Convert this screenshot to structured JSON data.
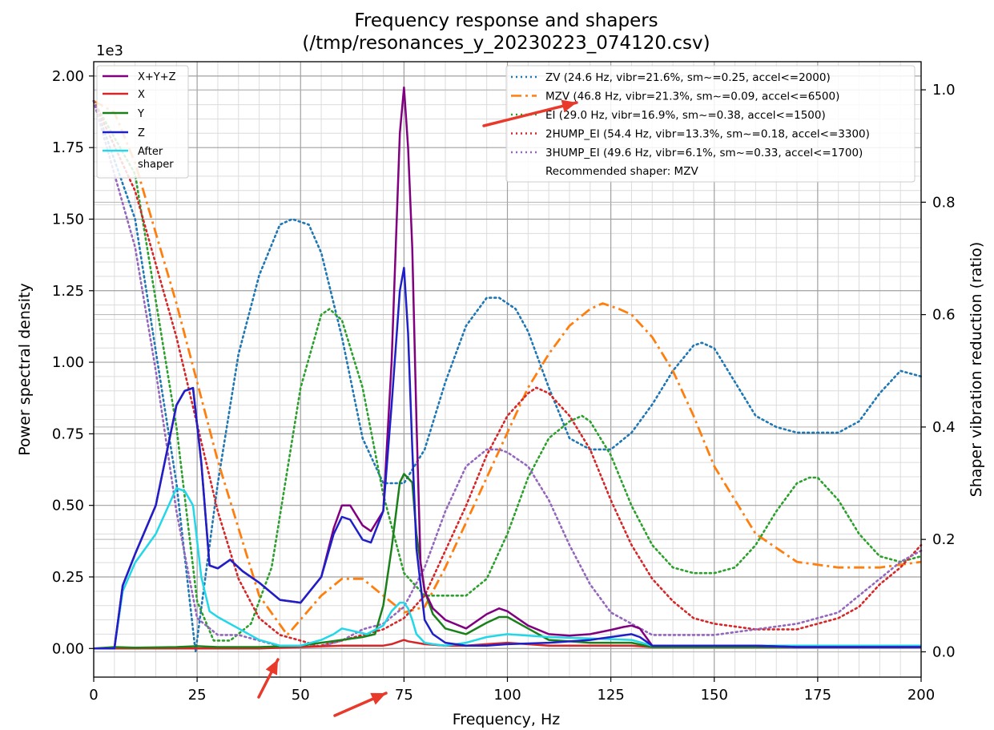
{
  "chart_data": {
    "type": "line",
    "title": "Frequency response and shapers",
    "subtitle": "(/tmp/resonances_y_20230223_074120.csv)",
    "xlabel": "Frequency, Hz",
    "ylabel": "Power spectral density",
    "y2label": "Shaper vibration reduction (ratio)",
    "y_multiplier_label": "1e3",
    "xlim": [
      0,
      200
    ],
    "ylim": [
      -0.1,
      2.05
    ],
    "y2lim": [
      -0.045,
      1.05
    ],
    "xticks": [
      0,
      25,
      50,
      75,
      100,
      125,
      150,
      175,
      200
    ],
    "xtick_labels": [
      "0",
      "25",
      "50",
      "75",
      "100",
      "125",
      "150",
      "175",
      "200"
    ],
    "yticks": [
      0,
      0.25,
      0.5,
      0.75,
      1.0,
      1.25,
      1.5,
      1.75,
      2.0
    ],
    "ytick_labels": [
      "0.00",
      "0.25",
      "0.50",
      "0.75",
      "1.00",
      "1.25",
      "1.50",
      "1.75",
      "2.00"
    ],
    "y2ticks": [
      0,
      0.2,
      0.4,
      0.6,
      0.8,
      1.0
    ],
    "y2tick_labels": [
      "0.0",
      "0.2",
      "0.4",
      "0.6",
      "0.8",
      "1.0"
    ],
    "grid": true,
    "legend_left_position": "top-left",
    "legend_right_position": "top-right",
    "recommended_text": "Recommended shaper: MZV",
    "series": [
      {
        "name": "X+Y+Z",
        "axis": "left",
        "color": "#800080",
        "dash": "solid",
        "x": [
          0,
          5,
          7,
          10,
          15,
          20,
          22,
          24,
          26,
          28,
          30,
          33,
          36,
          40,
          45,
          50,
          55,
          58,
          60,
          62,
          65,
          67,
          70,
          72,
          74,
          75,
          76,
          77,
          78,
          79,
          80,
          82,
          85,
          90,
          95,
          98,
          100,
          105,
          110,
          115,
          120,
          125,
          128,
          130,
          132,
          135,
          140,
          150,
          160,
          170,
          180,
          190,
          200
        ],
        "y": [
          0,
          0,
          0.22,
          0.33,
          0.5,
          0.85,
          0.9,
          0.91,
          0.65,
          0.29,
          0.28,
          0.31,
          0.27,
          0.23,
          0.17,
          0.16,
          0.25,
          0.42,
          0.5,
          0.5,
          0.43,
          0.41,
          0.48,
          1.0,
          1.8,
          1.96,
          1.75,
          1.4,
          0.8,
          0.3,
          0.2,
          0.14,
          0.1,
          0.07,
          0.12,
          0.14,
          0.13,
          0.08,
          0.05,
          0.045,
          0.05,
          0.065,
          0.075,
          0.08,
          0.07,
          0.01,
          0.01,
          0.01,
          0.01,
          0.005,
          0.005,
          0.005,
          0.005
        ]
      },
      {
        "name": "X",
        "axis": "left",
        "color": "#d62728",
        "dash": "solid",
        "x": [
          0,
          10,
          20,
          30,
          40,
          50,
          60,
          65,
          70,
          72,
          74,
          75,
          76,
          78,
          80,
          85,
          90,
          95,
          100,
          110,
          120,
          130,
          135,
          140,
          200
        ],
        "y": [
          0,
          0,
          0,
          0,
          0,
          0.005,
          0.01,
          0.01,
          0.01,
          0.015,
          0.025,
          0.03,
          0.025,
          0.02,
          0.015,
          0.01,
          0.01,
          0.015,
          0.02,
          0.01,
          0.01,
          0.01,
          0.005,
          0.005,
          0.005
        ]
      },
      {
        "name": "Y",
        "axis": "left",
        "color": "#1a801a",
        "dash": "solid",
        "x": [
          0,
          5,
          10,
          20,
          25,
          30,
          40,
          50,
          55,
          60,
          65,
          68,
          70,
          72,
          74,
          75,
          77,
          78,
          80,
          82,
          85,
          90,
          95,
          98,
          100,
          105,
          110,
          120,
          130,
          135,
          140,
          200
        ],
        "y": [
          0,
          0.005,
          0.003,
          0.005,
          0.008,
          0.005,
          0.005,
          0.01,
          0.02,
          0.03,
          0.04,
          0.05,
          0.15,
          0.35,
          0.58,
          0.61,
          0.58,
          0.4,
          0.2,
          0.12,
          0.07,
          0.05,
          0.09,
          0.11,
          0.11,
          0.07,
          0.03,
          0.02,
          0.02,
          0.005,
          0.005,
          0.005
        ]
      },
      {
        "name": "Z",
        "axis": "left",
        "color": "#1f1fc8",
        "dash": "solid",
        "x": [
          0,
          5,
          7,
          10,
          15,
          20,
          22,
          24,
          26,
          28,
          30,
          33,
          36,
          40,
          45,
          50,
          55,
          58,
          60,
          62,
          65,
          67,
          70,
          72,
          74,
          75,
          76,
          77,
          78,
          80,
          82,
          85,
          90,
          95,
          100,
          110,
          120,
          125,
          130,
          132,
          135,
          140,
          150,
          160,
          170,
          180,
          190,
          200
        ],
        "y": [
          0,
          0,
          0.22,
          0.33,
          0.5,
          0.85,
          0.9,
          0.91,
          0.65,
          0.29,
          0.28,
          0.31,
          0.27,
          0.23,
          0.17,
          0.16,
          0.25,
          0.4,
          0.46,
          0.45,
          0.38,
          0.37,
          0.48,
          0.85,
          1.25,
          1.33,
          1.1,
          0.7,
          0.35,
          0.1,
          0.05,
          0.02,
          0.01,
          0.01,
          0.015,
          0.02,
          0.03,
          0.04,
          0.05,
          0.04,
          0.01,
          0.01,
          0.01,
          0.01,
          0.005,
          0.005,
          0.005,
          0.005
        ]
      },
      {
        "name": "After\nshaper",
        "axis": "left",
        "color": "#22d8e8",
        "dash": "solid",
        "x": [
          0,
          5,
          7,
          10,
          15,
          20,
          22,
          24,
          26,
          28,
          30,
          35,
          40,
          45,
          50,
          55,
          58,
          60,
          63,
          66,
          70,
          72,
          74,
          75,
          76,
          77,
          78,
          80,
          82,
          85,
          90,
          95,
          100,
          110,
          120,
          130,
          135,
          140,
          200
        ],
        "y": [
          0,
          0,
          0.2,
          0.3,
          0.4,
          0.56,
          0.55,
          0.5,
          0.25,
          0.13,
          0.11,
          0.07,
          0.03,
          0.01,
          0.01,
          0.03,
          0.05,
          0.07,
          0.06,
          0.05,
          0.08,
          0.13,
          0.16,
          0.16,
          0.14,
          0.1,
          0.05,
          0.02,
          0.015,
          0.01,
          0.02,
          0.04,
          0.05,
          0.04,
          0.035,
          0.03,
          0.01,
          0.01,
          0.01
        ]
      },
      {
        "name": "ZV (24.6 Hz, vibr=21.6%, sm~=0.25, accel<=2000)",
        "axis": "right",
        "color": "#1f77b4",
        "dash": "dotted",
        "x": [
          0,
          10,
          20,
          24.6,
          30,
          35,
          40,
          45,
          48,
          52,
          55,
          60,
          65,
          70,
          75,
          80,
          85,
          90,
          95,
          98,
          102,
          105,
          110,
          115,
          120,
          125,
          130,
          135,
          140,
          145,
          147,
          150,
          155,
          160,
          165,
          170,
          175,
          180,
          185,
          190,
          195,
          200
        ],
        "y": [
          0.98,
          0.77,
          0.3,
          0.0,
          0.3,
          0.53,
          0.67,
          0.76,
          0.77,
          0.76,
          0.71,
          0.56,
          0.38,
          0.3,
          0.3,
          0.36,
          0.48,
          0.58,
          0.63,
          0.63,
          0.61,
          0.57,
          0.47,
          0.38,
          0.36,
          0.36,
          0.39,
          0.44,
          0.5,
          0.545,
          0.55,
          0.54,
          0.48,
          0.42,
          0.4,
          0.39,
          0.39,
          0.39,
          0.41,
          0.46,
          0.5,
          0.49
        ]
      },
      {
        "name": "MZV (46.8 Hz, vibr=21.3%, sm~=0.09, accel<=6500)",
        "axis": "right",
        "color": "#ff7f0e",
        "dash": "dashdot",
        "x": [
          0,
          5,
          10,
          20,
          30,
          40,
          46.8,
          55,
          60,
          62,
          65,
          70,
          75,
          80,
          85,
          90,
          95,
          100,
          105,
          110,
          115,
          120,
          123,
          127,
          130,
          135,
          140,
          145,
          150,
          160,
          170,
          180,
          185,
          190,
          200
        ],
        "y": [
          0.98,
          0.96,
          0.87,
          0.62,
          0.34,
          0.1,
          0.03,
          0.1,
          0.13,
          0.13,
          0.13,
          0.1,
          0.07,
          0.08,
          0.15,
          0.23,
          0.31,
          0.39,
          0.47,
          0.53,
          0.58,
          0.61,
          0.62,
          0.61,
          0.6,
          0.56,
          0.5,
          0.42,
          0.33,
          0.21,
          0.16,
          0.15,
          0.15,
          0.15,
          0.16
        ]
      },
      {
        "name": "EI (29.0 Hz, vibr=16.9%, sm~=0.38, accel<=1500)",
        "axis": "right",
        "color": "#2ca02c",
        "dash": "dotted",
        "x": [
          0,
          10,
          20,
          25,
          29,
          33,
          38,
          43,
          50,
          55,
          57,
          60,
          65,
          70,
          75,
          80,
          85,
          90,
          95,
          100,
          105,
          110,
          115,
          118,
          120,
          125,
          130,
          135,
          140,
          145,
          150,
          155,
          160,
          165,
          170,
          173,
          175,
          180,
          185,
          190,
          195,
          200
        ],
        "y": [
          0.98,
          0.85,
          0.4,
          0.09,
          0.02,
          0.02,
          0.05,
          0.15,
          0.47,
          0.6,
          0.61,
          0.59,
          0.47,
          0.28,
          0.14,
          0.1,
          0.1,
          0.1,
          0.13,
          0.21,
          0.31,
          0.38,
          0.41,
          0.42,
          0.41,
          0.35,
          0.26,
          0.19,
          0.15,
          0.14,
          0.14,
          0.15,
          0.19,
          0.25,
          0.3,
          0.31,
          0.31,
          0.27,
          0.21,
          0.17,
          0.16,
          0.17
        ]
      },
      {
        "name": "2HUMP_EI (54.4 Hz, vibr=13.3%, sm~=0.18, accel<=3300)",
        "axis": "right",
        "color": "#d62728",
        "dash": "dotted",
        "x": [
          0,
          10,
          20,
          30,
          35,
          40,
          45,
          50,
          54.4,
          60,
          65,
          70,
          75,
          80,
          85,
          90,
          95,
          100,
          105,
          107,
          110,
          115,
          120,
          125,
          130,
          135,
          140,
          145,
          150,
          160,
          170,
          180,
          185,
          190,
          195,
          200
        ],
        "y": [
          0.98,
          0.82,
          0.56,
          0.25,
          0.13,
          0.06,
          0.03,
          0.02,
          0.01,
          0.02,
          0.03,
          0.04,
          0.06,
          0.1,
          0.18,
          0.26,
          0.35,
          0.42,
          0.46,
          0.47,
          0.46,
          0.42,
          0.36,
          0.27,
          0.19,
          0.13,
          0.09,
          0.06,
          0.05,
          0.04,
          0.04,
          0.06,
          0.08,
          0.12,
          0.15,
          0.19
        ]
      },
      {
        "name": "3HUMP_EI (49.6 Hz, vibr=6.1%, sm~=0.33, accel<=1700)",
        "axis": "right",
        "color": "#9467bd",
        "dash": "dotted",
        "x": [
          0,
          10,
          15,
          20,
          25,
          30,
          35,
          40,
          45,
          49.6,
          55,
          60,
          65,
          70,
          75,
          80,
          85,
          90,
          95,
          98,
          100,
          105,
          110,
          115,
          120,
          125,
          130,
          135,
          140,
          150,
          160,
          170,
          180,
          185,
          190,
          195,
          200
        ],
        "y": [
          0.98,
          0.72,
          0.5,
          0.25,
          0.06,
          0.03,
          0.03,
          0.02,
          0.01,
          0.01,
          0.01,
          0.02,
          0.04,
          0.05,
          0.08,
          0.15,
          0.25,
          0.33,
          0.36,
          0.36,
          0.355,
          0.33,
          0.27,
          0.19,
          0.12,
          0.07,
          0.05,
          0.03,
          0.03,
          0.03,
          0.04,
          0.05,
          0.07,
          0.1,
          0.13,
          0.16,
          0.18
        ]
      }
    ]
  },
  "annotations": {
    "arrow_color": "#e8392b"
  }
}
